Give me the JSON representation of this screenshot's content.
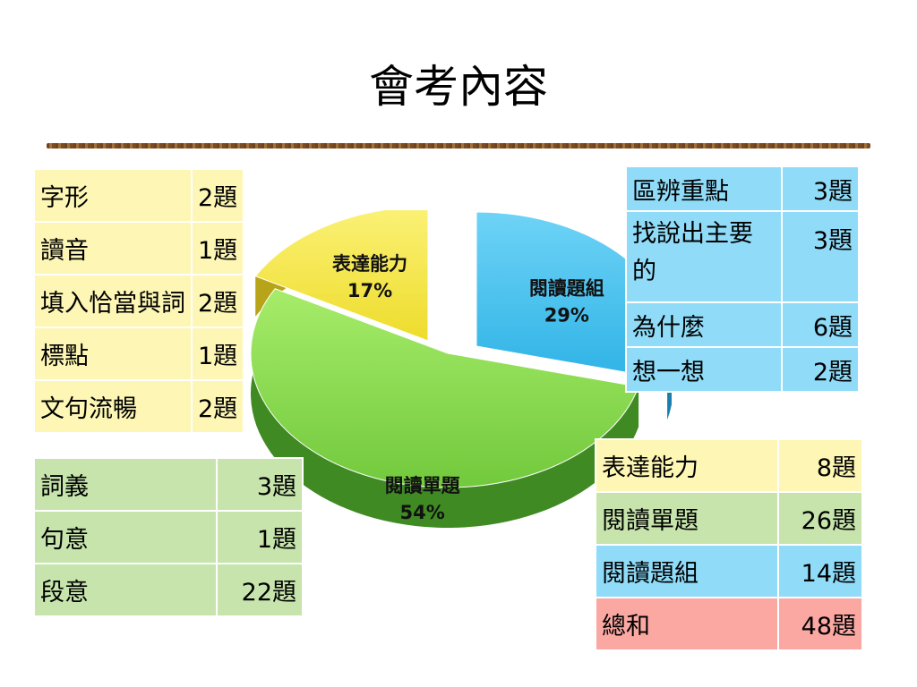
{
  "title": "會考內容",
  "chart_data": {
    "type": "pie",
    "slices": [
      {
        "label": "閱讀單題",
        "value": 54,
        "value_label": "54%",
        "color": "#8fdc4f"
      },
      {
        "label": "表達能力",
        "value": 17,
        "value_label": "17%",
        "color": "#f7ea45"
      },
      {
        "label": "閱讀題組",
        "value": 29,
        "value_label": "29%",
        "color": "#43c2ee"
      }
    ]
  },
  "table_left_top": {
    "rows": [
      {
        "label": "字形",
        "count": "2題"
      },
      {
        "label": "讀音",
        "count": "1題"
      },
      {
        "label": "填入恰當與詞",
        "count": "2題"
      },
      {
        "label": "標點",
        "count": "1題"
      },
      {
        "label": "文句流暢",
        "count": "2題"
      }
    ]
  },
  "table_left_bottom": {
    "rows": [
      {
        "label": "詞義",
        "count": "3題"
      },
      {
        "label": "句意",
        "count": "1題"
      },
      {
        "label": "段意",
        "count": "22題"
      }
    ]
  },
  "table_right_top": {
    "rows": [
      {
        "label": "區辨重點",
        "count": "3題"
      },
      {
        "label": "找說出主要的",
        "count": "3題"
      },
      {
        "label": "為什麼",
        "count": "6題"
      },
      {
        "label": "想一想",
        "count": "2題"
      }
    ]
  },
  "table_summary": {
    "rows": [
      {
        "label": "表達能力",
        "count": "8題"
      },
      {
        "label": "閱讀單題",
        "count": "26題"
      },
      {
        "label": "閱讀題組",
        "count": "14題"
      },
      {
        "label": "總和",
        "count": "48題"
      }
    ]
  }
}
